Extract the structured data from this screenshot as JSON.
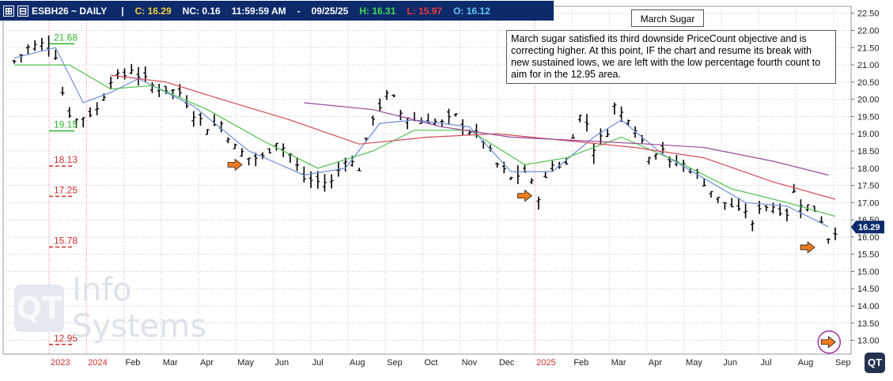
{
  "header": {
    "symbol": "ESBH26 ~ DAILY",
    "separator": "|",
    "close": "C: 16.29",
    "net_change": "NC: 0.16",
    "time": "11:59:59 AM",
    "dash": "-",
    "date": "09/25/25",
    "high": "H: 16.31",
    "low": "L: 15.97",
    "open": "O: 16.12",
    "colors": {
      "bg": "#0d2a6b",
      "close": "#f2d43a",
      "nc": "#3ddc4a",
      "high": "#3ddc4a",
      "low": "#e83b3b",
      "open": "#5fc8f0"
    }
  },
  "annotation": {
    "title": "March Sugar",
    "text": "March sugar satisfied its third downside PriceCount objective and is correcting higher.  At this point, IF the chart and resume its break with new sustained lows, we are left with the low percentage fourth count to aim for in the 12.95 area."
  },
  "watermark": {
    "logo": "QT",
    "text": "Info Systems"
  },
  "corner_logo": "QT",
  "chart_data": {
    "type": "ohlc-bar",
    "ylim": [
      12.6,
      22.7
    ],
    "y_ticks": [
      "22.50",
      "22.00",
      "21.50",
      "21.00",
      "20.50",
      "20.00",
      "19.50",
      "19.00",
      "18.50",
      "18.00",
      "17.50",
      "17.00",
      "16.50",
      "16.00",
      "15.50",
      "15.00",
      "14.50",
      "14.00",
      "13.50",
      "13.00"
    ],
    "x_labels": [
      {
        "label": "2023",
        "color": "#d03030"
      },
      {
        "label": "2024",
        "color": "#d03030"
      },
      {
        "label": "Feb",
        "color": "#222222"
      },
      {
        "label": "Mar",
        "color": "#222222"
      },
      {
        "label": "Apr",
        "color": "#222222"
      },
      {
        "label": "May",
        "color": "#222222"
      },
      {
        "label": "Jun",
        "color": "#222222"
      },
      {
        "label": "Jul",
        "color": "#222222"
      },
      {
        "label": "Aug",
        "color": "#222222"
      },
      {
        "label": "Sep",
        "color": "#222222"
      },
      {
        "label": "Oct",
        "color": "#222222"
      },
      {
        "label": "Nov",
        "color": "#222222"
      },
      {
        "label": "Dec",
        "color": "#222222"
      },
      {
        "label": "2025",
        "color": "#d03030"
      },
      {
        "label": "Feb",
        "color": "#222222"
      },
      {
        "label": "Mar",
        "color": "#222222"
      },
      {
        "label": "Apr",
        "color": "#222222"
      },
      {
        "label": "May",
        "color": "#222222"
      },
      {
        "label": "Jun",
        "color": "#222222"
      },
      {
        "label": "Jul",
        "color": "#222222"
      },
      {
        "label": "Aug",
        "color": "#222222"
      },
      {
        "label": "Sep",
        "color": "#222222"
      }
    ],
    "last_price": "16.29",
    "price_path": [
      [
        0,
        21.1
      ],
      [
        2,
        21.5
      ],
      [
        4,
        21.6
      ],
      [
        5,
        21.7
      ],
      [
        6,
        21.3
      ],
      [
        7,
        20.2
      ],
      [
        8,
        19.6
      ],
      [
        9,
        19.4
      ],
      [
        10,
        19.5
      ],
      [
        12,
        19.7
      ],
      [
        14,
        20.6
      ],
      [
        16,
        20.7
      ],
      [
        17,
        20.9
      ],
      [
        18,
        20.7
      ],
      [
        20,
        20.4
      ],
      [
        22,
        20.3
      ],
      [
        24,
        20.2
      ],
      [
        26,
        19.6
      ],
      [
        28,
        19.2
      ],
      [
        30,
        19.3
      ],
      [
        32,
        18.6
      ],
      [
        34,
        18.3
      ],
      [
        36,
        18.3
      ],
      [
        38,
        18.8
      ],
      [
        40,
        18.4
      ],
      [
        42,
        17.7
      ],
      [
        44,
        17.6
      ],
      [
        46,
        17.6
      ],
      [
        48,
        18.3
      ],
      [
        50,
        18.0
      ],
      [
        52,
        19.5
      ],
      [
        54,
        20.1
      ],
      [
        55,
        20.0
      ],
      [
        56,
        19.6
      ],
      [
        58,
        19.4
      ],
      [
        60,
        19.4
      ],
      [
        62,
        19.3
      ],
      [
        64,
        19.5
      ],
      [
        66,
        19.1
      ],
      [
        68,
        18.8
      ],
      [
        70,
        18.1
      ],
      [
        72,
        17.7
      ],
      [
        74,
        17.9
      ],
      [
        76,
        17.2
      ],
      [
        78,
        18.1
      ],
      [
        80,
        18.1
      ],
      [
        81,
        19.0
      ],
      [
        82,
        19.5
      ],
      [
        83,
        19.3
      ],
      [
        84,
        18.6
      ],
      [
        86,
        19.1
      ],
      [
        87,
        19.8
      ],
      [
        88,
        19.6
      ],
      [
        89,
        19.5
      ],
      [
        90,
        19.2
      ],
      [
        92,
        18.4
      ],
      [
        94,
        18.6
      ],
      [
        95,
        18.1
      ],
      [
        96,
        18.2
      ],
      [
        98,
        18.0
      ],
      [
        100,
        17.6
      ],
      [
        102,
        17.1
      ],
      [
        104,
        16.9
      ],
      [
        105,
        16.7
      ],
      [
        106,
        16.8
      ],
      [
        107,
        16.3
      ],
      [
        108,
        16.9
      ],
      [
        110,
        16.9
      ],
      [
        112,
        16.7
      ],
      [
        113,
        17.3
      ],
      [
        114,
        17.0
      ],
      [
        116,
        16.8
      ],
      [
        117,
        16.5
      ],
      [
        118,
        16.0
      ],
      [
        119,
        16.2
      ]
    ],
    "series": [
      {
        "color": "#6e8fd8",
        "values": [
          [
            0,
            21.2
          ],
          [
            6,
            21.5
          ],
          [
            10,
            19.9
          ],
          [
            14,
            20.2
          ],
          [
            18,
            20.6
          ],
          [
            26,
            19.8
          ],
          [
            34,
            18.5
          ],
          [
            42,
            17.8
          ],
          [
            48,
            18.0
          ],
          [
            53,
            19.3
          ],
          [
            58,
            19.4
          ],
          [
            66,
            19.2
          ],
          [
            72,
            17.9
          ],
          [
            78,
            17.9
          ],
          [
            84,
            18.9
          ],
          [
            88,
            19.4
          ],
          [
            94,
            18.4
          ],
          [
            100,
            17.7
          ],
          [
            106,
            17.0
          ],
          [
            112,
            16.9
          ],
          [
            118,
            16.3
          ]
        ]
      },
      {
        "color": "#4fc04f",
        "values": [
          [
            0,
            21.0
          ],
          [
            8,
            21.0
          ],
          [
            14,
            20.3
          ],
          [
            20,
            20.4
          ],
          [
            28,
            19.7
          ],
          [
            36,
            18.8
          ],
          [
            44,
            18.0
          ],
          [
            52,
            18.5
          ],
          [
            58,
            19.1
          ],
          [
            66,
            19.1
          ],
          [
            74,
            18.1
          ],
          [
            80,
            18.3
          ],
          [
            88,
            18.9
          ],
          [
            96,
            18.2
          ],
          [
            104,
            17.4
          ],
          [
            112,
            17.0
          ],
          [
            119,
            16.6
          ]
        ]
      },
      {
        "color": "#d04a5a",
        "values": [
          [
            14,
            20.7
          ],
          [
            22,
            20.5
          ],
          [
            30,
            20.0
          ],
          [
            40,
            19.4
          ],
          [
            50,
            18.7
          ],
          [
            60,
            18.9
          ],
          [
            70,
            19.0
          ],
          [
            80,
            18.8
          ],
          [
            90,
            18.6
          ],
          [
            100,
            18.3
          ],
          [
            110,
            17.6
          ],
          [
            119,
            17.1
          ]
        ]
      },
      {
        "color": "#9a4a9a",
        "values": [
          [
            42,
            19.9
          ],
          [
            52,
            19.7
          ],
          [
            62,
            19.2
          ],
          [
            72,
            18.9
          ],
          [
            82,
            18.8
          ],
          [
            92,
            18.7
          ],
          [
            100,
            18.6
          ],
          [
            110,
            18.2
          ],
          [
            118,
            17.8
          ]
        ]
      }
    ],
    "count_levels": [
      {
        "label": "21.68",
        "value": 21.68,
        "color": "#2fb52f"
      },
      {
        "label": "19.15",
        "value": 19.15,
        "color": "#2fb52f"
      },
      {
        "label": "18.13",
        "value": 18.13,
        "color": "#d03030"
      },
      {
        "label": "17.25",
        "value": 17.25,
        "color": "#d03030"
      },
      {
        "label": "15.78",
        "value": 15.78,
        "color": "#d03030"
      },
      {
        "label": "12.95",
        "value": 12.95,
        "color": "#d03030"
      }
    ],
    "arrows": [
      {
        "x": 32,
        "y": 18.1
      },
      {
        "x": 74,
        "y": 17.2
      },
      {
        "x": 115,
        "y": 15.7
      },
      {
        "x": 118,
        "y": 12.95,
        "circled": true
      }
    ],
    "colors": {
      "bars": "#000000",
      "grid": "#c8c8c8",
      "arrow": "#f07a1c",
      "circle": "#a030a0",
      "price_tag": "#0d2a6b"
    }
  }
}
